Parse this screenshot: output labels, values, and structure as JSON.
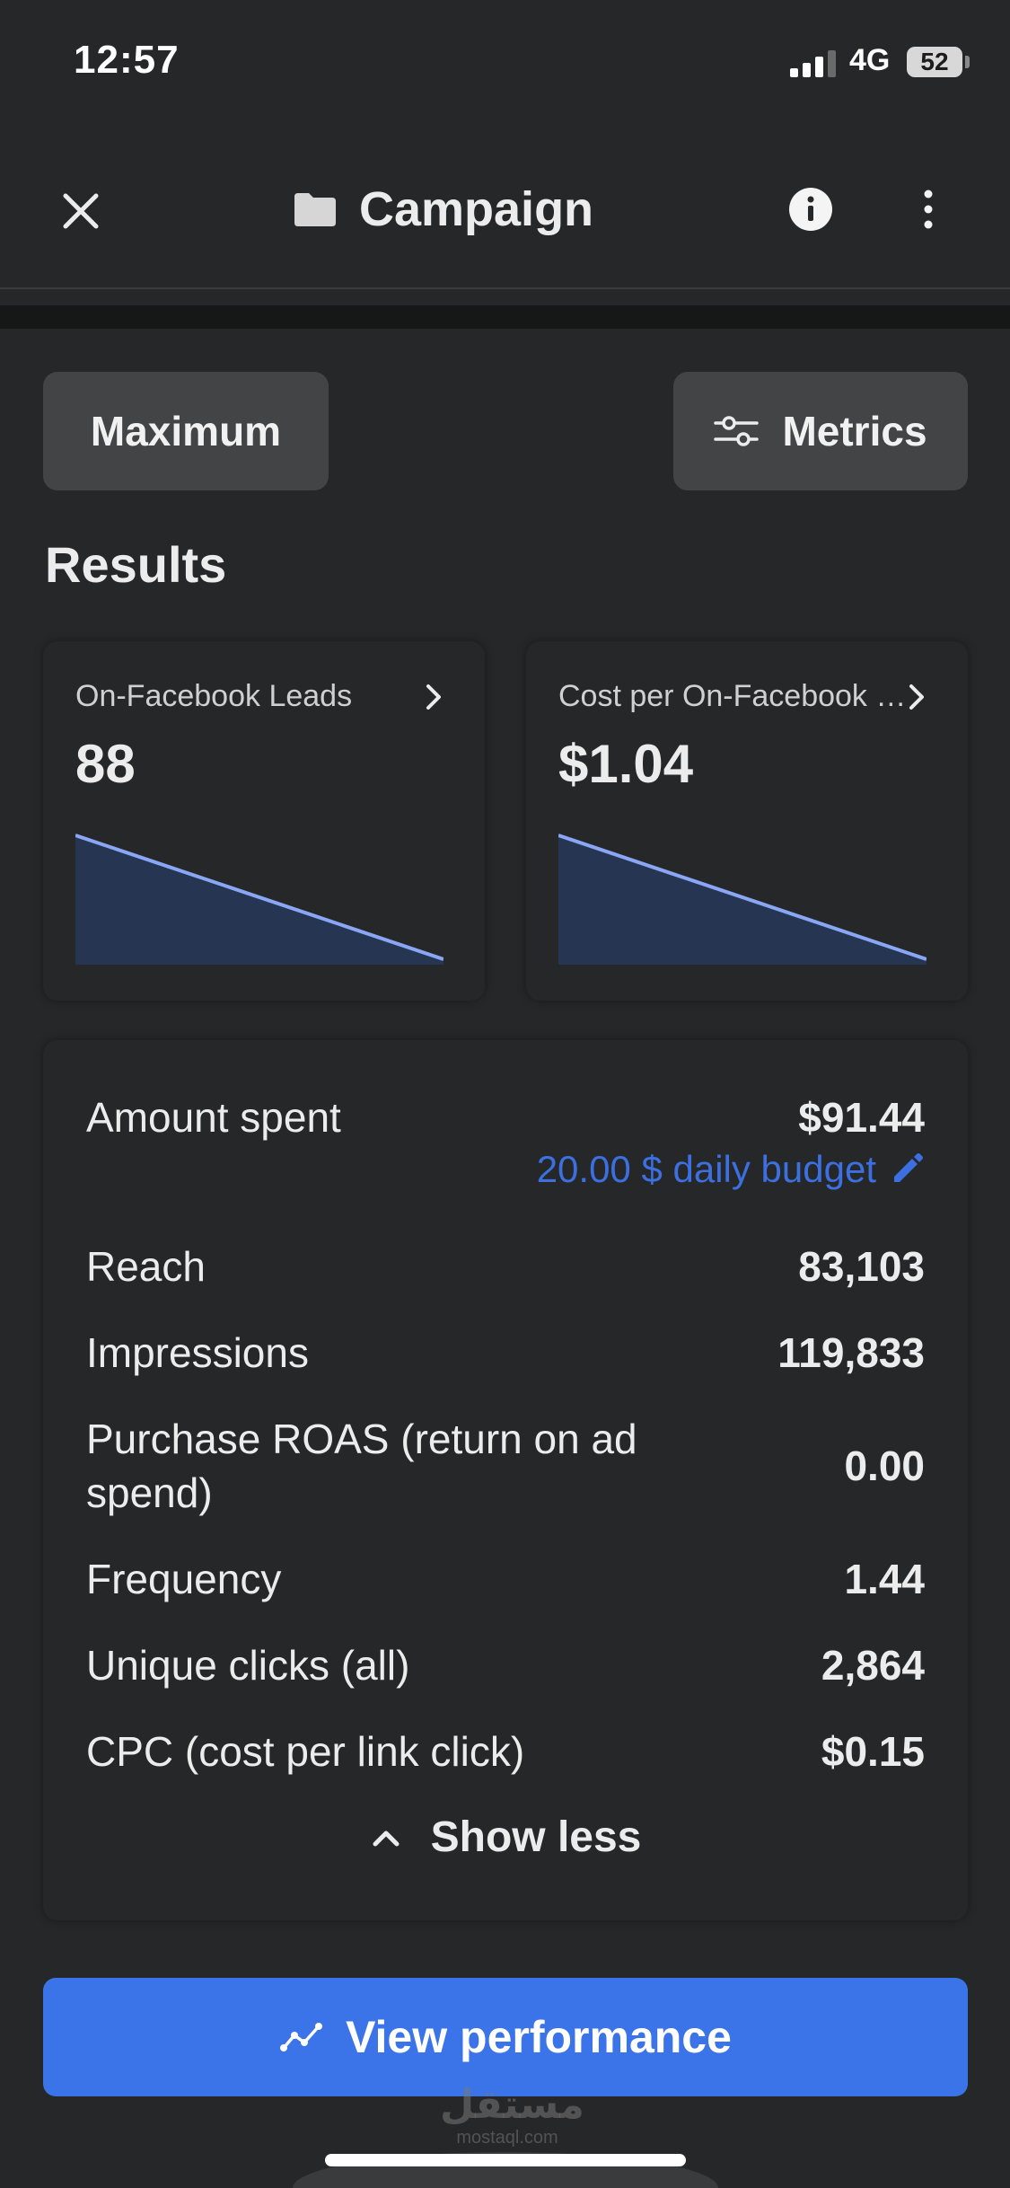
{
  "status_bar": {
    "time": "12:57",
    "network": "4G",
    "battery": "52"
  },
  "header": {
    "title": "Campaign",
    "icons": [
      "close-icon",
      "folder-icon",
      "info-icon",
      "more-icon"
    ]
  },
  "filters": {
    "range_label": "Maximum",
    "metrics_label": "Metrics"
  },
  "results": {
    "title": "Results",
    "cards": [
      {
        "label": "On-Facebook Leads",
        "value": "88",
        "trend": [
          1,
          0
        ]
      },
      {
        "label": "Cost per On-Facebook Lead",
        "value": "$1.04",
        "trend": [
          1,
          0
        ]
      }
    ]
  },
  "stats": {
    "amount_spent": {
      "label": "Amount spent",
      "value": "$91.44",
      "budget": "20.00 $ daily budget"
    },
    "rows": [
      {
        "label": "Reach",
        "value": "83,103"
      },
      {
        "label": "Impressions",
        "value": "119,833"
      },
      {
        "label": "Purchase ROAS (return on ad spend)",
        "value": "0.00"
      },
      {
        "label": "Frequency",
        "value": "1.44"
      },
      {
        "label": "Unique clicks (all)",
        "value": "2,864"
      },
      {
        "label": "CPC (cost per link click)",
        "value": "$0.15"
      }
    ],
    "toggle_label": "Show less"
  },
  "cta": {
    "label": "View performance"
  },
  "watermark": {
    "arabic": "مستقل",
    "latin": "mostaql.com"
  },
  "colors": {
    "background": "#262728",
    "accent": "#3b73e8",
    "link": "#3c6fe0",
    "chart_line": "#8aa7f5",
    "chart_fill": "#263552"
  }
}
